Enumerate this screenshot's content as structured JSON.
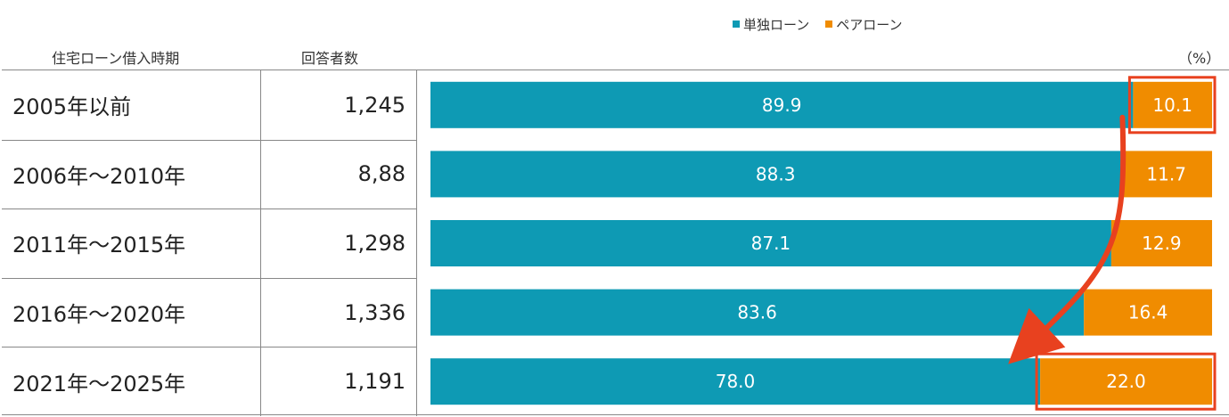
{
  "headers": {
    "period": "住宅ローン借入時期",
    "respondents": "回答者数",
    "unit": "（%）"
  },
  "colors": {
    "single": "#0E9AB4",
    "pair": "#F08C00",
    "highlight": "#E8411F"
  },
  "chart_data": {
    "type": "bar",
    "orientation": "horizontal",
    "stacked": true,
    "percent": true,
    "categories": [
      "2005年以前",
      "2006年～2010年",
      "2011年～2015年",
      "2016年～2020年",
      "2021年～2025年"
    ],
    "respondents": [
      "1,245",
      "8,88",
      "1,298",
      "1,336",
      "1,191"
    ],
    "series": [
      {
        "name": "単独ローン",
        "values": [
          89.9,
          88.3,
          87.1,
          83.6,
          78.0
        ],
        "labels": [
          "89.9",
          "88.3",
          "87.1",
          "83.6",
          "78.0"
        ]
      },
      {
        "name": "ペアローン",
        "values": [
          10.1,
          11.7,
          12.9,
          16.4,
          22.0
        ],
        "labels": [
          "10.1",
          "11.7",
          "12.9",
          "16.4",
          "22.0"
        ]
      }
    ],
    "xlim": [
      0,
      100
    ],
    "legend": "top",
    "highlighted": [
      {
        "series": 1,
        "category": 0
      },
      {
        "series": 1,
        "category": 4
      }
    ],
    "annotation": "arrow from 2005年以前 ペアローン to 2021年～2025年 ペアローン"
  }
}
